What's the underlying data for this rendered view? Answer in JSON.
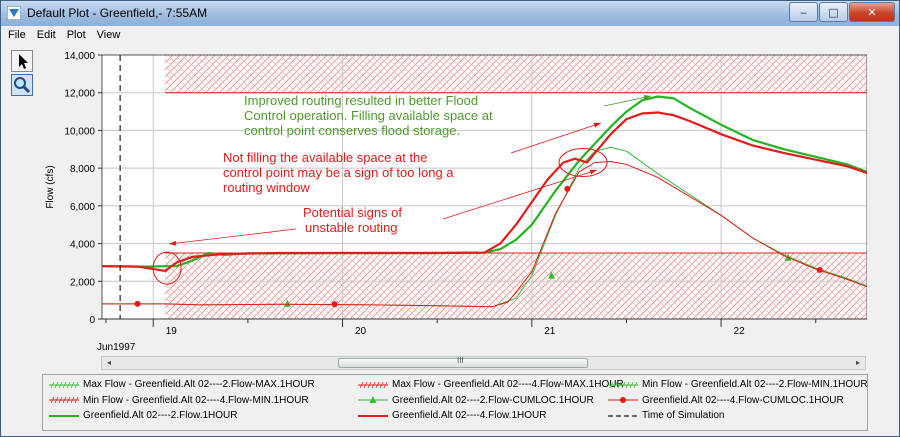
{
  "window": {
    "title": "Default Plot - Greenfield,- 7:55AM",
    "buttons": {
      "minimize": "‒",
      "maximize": "□",
      "close": "✕"
    }
  },
  "menu": [
    "File",
    "Edit",
    "Plot",
    "View"
  ],
  "toolbar": {
    "tools": [
      "pointer-arrow-icon",
      "zoom-magnifier-icon"
    ]
  },
  "scrollbar": {
    "left_arrow": "◂",
    "right_arrow": "▸",
    "grip": "III"
  },
  "chart_data": {
    "type": "line",
    "title": "",
    "ylabel": "Flow (cfs)",
    "xlabel": "",
    "x_unit": "hours since 18 Jun 1997 00:00",
    "xlim": [
      17.5,
      114.5
    ],
    "ylim": [
      0,
      14000
    ],
    "y_ticks": [
      0,
      2000,
      4000,
      6000,
      8000,
      10000,
      12000,
      14000
    ],
    "y_tick_labels": [
      "0",
      "2,000",
      "4,000",
      "6,000",
      "8,000",
      "10,000",
      "12,000",
      "14,000"
    ],
    "x_ticks": [
      24,
      48,
      72,
      96
    ],
    "x_tick_labels": [
      "19",
      "20",
      "21",
      "22"
    ],
    "x_minor_ticks": [
      18,
      36,
      60,
      84,
      108
    ],
    "x_axis_caption": "Jun1997",
    "grid": true,
    "time_of_simulation": 19.8,
    "hatched_region_start": 25.5,
    "series": [
      {
        "name": "Max Flow - Greenfield.Alt 02----2.Flow-MAX.1HOUR",
        "color": "#33bb33",
        "style": "hatch-green",
        "points": []
      },
      {
        "name": "Max Flow - Greenfield.Alt 02----4.Flow-MAX.1HOUR",
        "color": "#e31b1b",
        "style": "hatch-red",
        "points": [
          [
            25.5,
            12000
          ],
          [
            114.5,
            12000
          ]
        ]
      },
      {
        "name": "Min Flow - Greenfield.Alt 02----2.Flow-MIN.1HOUR",
        "color": "#33bb33",
        "style": "hatch-green",
        "points": []
      },
      {
        "name": "Min Flow - Greenfield.Alt 02----4.Flow-MIN.1HOUR",
        "color": "#e31b1b",
        "style": "hatch-red",
        "points": [
          [
            25.5,
            3500
          ],
          [
            114.5,
            3500
          ]
        ]
      },
      {
        "name": "Greenfield.Alt 02----2.Flow-CUMLOC.1HOUR",
        "color": "#33bb33",
        "style": "thin-triangle",
        "markers": [
          [
            41,
            800
          ],
          [
            74.5,
            2300
          ],
          [
            104.5,
            3250
          ]
        ],
        "points": [
          [
            17.5,
            800
          ],
          [
            25.5,
            800
          ],
          [
            30,
            750
          ],
          [
            40,
            780
          ],
          [
            50,
            760
          ],
          [
            60,
            700
          ],
          [
            67,
            650
          ],
          [
            70,
            1100
          ],
          [
            72,
            2300
          ],
          [
            75,
            5500
          ],
          [
            78,
            8000
          ],
          [
            80,
            8900
          ],
          [
            82,
            9100
          ],
          [
            84,
            8900
          ],
          [
            88,
            7700
          ],
          [
            92,
            6600
          ],
          [
            96,
            5500
          ],
          [
            100,
            4300
          ],
          [
            104,
            3400
          ],
          [
            108,
            2700
          ],
          [
            112,
            2150
          ],
          [
            114.5,
            1750
          ]
        ]
      },
      {
        "name": "Greenfield.Alt 02----4.Flow-CUMLOC.1HOUR",
        "color": "#e31b1b",
        "style": "thin-circle",
        "markers": [
          [
            22,
            800
          ],
          [
            47,
            780
          ],
          [
            76.5,
            6900
          ],
          [
            108.5,
            2600
          ]
        ],
        "points": [
          [
            17.5,
            800
          ],
          [
            25.5,
            800
          ],
          [
            30,
            750
          ],
          [
            40,
            780
          ],
          [
            50,
            760
          ],
          [
            60,
            700
          ],
          [
            67,
            650
          ],
          [
            69,
            900
          ],
          [
            72,
            2500
          ],
          [
            75,
            5600
          ],
          [
            78,
            7800
          ],
          [
            80,
            8300
          ],
          [
            82,
            8350
          ],
          [
            84,
            8200
          ],
          [
            88,
            7500
          ],
          [
            92,
            6500
          ],
          [
            96,
            5500
          ],
          [
            100,
            4300
          ],
          [
            104,
            3350
          ],
          [
            108,
            2650
          ],
          [
            112,
            2100
          ],
          [
            114.5,
            1720
          ]
        ]
      },
      {
        "name": "Greenfield.Alt 02----2.Flow.1HOUR",
        "color": "#22b422",
        "style": "thick",
        "points": [
          [
            17.5,
            2800
          ],
          [
            23,
            2780
          ],
          [
            25.5,
            2800
          ],
          [
            27,
            2800
          ],
          [
            29,
            3100
          ],
          [
            31,
            3500
          ],
          [
            33,
            3400
          ],
          [
            36,
            3480
          ],
          [
            48,
            3500
          ],
          [
            60,
            3500
          ],
          [
            66,
            3520
          ],
          [
            68,
            3700
          ],
          [
            70,
            4200
          ],
          [
            72,
            5000
          ],
          [
            75,
            6800
          ],
          [
            78,
            8400
          ],
          [
            80,
            9300
          ],
          [
            82,
            10200
          ],
          [
            84,
            11000
          ],
          [
            86,
            11600
          ],
          [
            88,
            11800
          ],
          [
            90,
            11700
          ],
          [
            92,
            11200
          ],
          [
            96,
            10300
          ],
          [
            100,
            9500
          ],
          [
            104,
            9000
          ],
          [
            108,
            8600
          ],
          [
            112,
            8200
          ],
          [
            114.5,
            7800
          ]
        ]
      },
      {
        "name": "Greenfield.Alt 02----4.Flow.1HOUR",
        "color": "#e31b1b",
        "style": "thick",
        "points": [
          [
            17.5,
            2800
          ],
          [
            22,
            2780
          ],
          [
            25.5,
            2550
          ],
          [
            27,
            3000
          ],
          [
            29,
            3300
          ],
          [
            33,
            3450
          ],
          [
            40,
            3500
          ],
          [
            50,
            3500
          ],
          [
            60,
            3500
          ],
          [
            66,
            3520
          ],
          [
            68,
            4000
          ],
          [
            70,
            5000
          ],
          [
            72,
            6200
          ],
          [
            74,
            7400
          ],
          [
            76,
            8300
          ],
          [
            77.5,
            8500
          ],
          [
            79,
            8300
          ],
          [
            80,
            8800
          ],
          [
            82,
            9800
          ],
          [
            84,
            10600
          ],
          [
            86,
            10900
          ],
          [
            88,
            10950
          ],
          [
            90,
            10800
          ],
          [
            92,
            10500
          ],
          [
            96,
            9800
          ],
          [
            100,
            9200
          ],
          [
            104,
            8800
          ],
          [
            108,
            8450
          ],
          [
            112,
            8100
          ],
          [
            114.5,
            7750
          ]
        ]
      },
      {
        "name": "Time of Simulation",
        "color": "#222222",
        "style": "dashed",
        "points": []
      }
    ],
    "annotations": [
      {
        "id": "improved",
        "text": [
          "Improved routing resulted in better Flood",
          "Control operation. Filling available space at",
          "control point conserves flood storage."
        ],
        "color": "#4f9a2f"
      },
      {
        "id": "not_filling",
        "text": [
          "Not filling the available space at the",
          "control point may be a sign of too long a",
          "routing window"
        ],
        "color": "#e31b1b"
      },
      {
        "id": "unstable",
        "text": [
          "Potential signs of",
          "unstable routing"
        ],
        "color": "#e31b1b"
      }
    ]
  }
}
